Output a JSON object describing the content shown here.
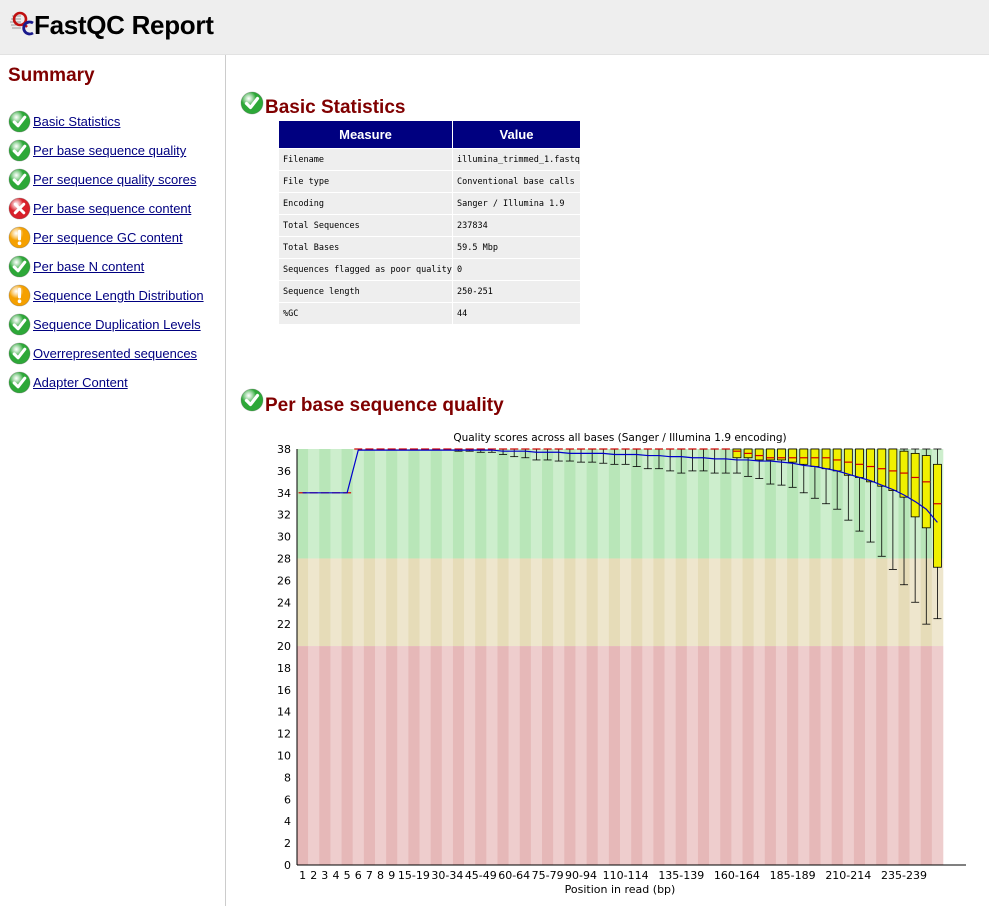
{
  "colors": {
    "ok": "#2da838",
    "warn": "#f5a000",
    "fail": "#d8202a",
    "link": "#000080",
    "heading": "#800000",
    "table_header": "#000080"
  },
  "header": {
    "title": "FastQC Report",
    "logo_icon": "fastqc-logo-icon"
  },
  "sidebar": {
    "title": "Summary",
    "modules": [
      {
        "label": "Basic Statistics",
        "status": "pass"
      },
      {
        "label": "Per base sequence quality",
        "status": "pass"
      },
      {
        "label": "Per sequence quality scores",
        "status": "pass"
      },
      {
        "label": "Per base sequence content",
        "status": "fail"
      },
      {
        "label": "Per sequence GC content",
        "status": "warn"
      },
      {
        "label": "Per base N content",
        "status": "pass"
      },
      {
        "label": "Sequence Length Distribution",
        "status": "warn"
      },
      {
        "label": "Sequence Duplication Levels",
        "status": "pass"
      },
      {
        "label": "Overrepresented sequences",
        "status": "pass"
      },
      {
        "label": "Adapter Content",
        "status": "pass"
      }
    ]
  },
  "basic_stats": {
    "title": "Basic Statistics",
    "status": "pass",
    "headers": [
      "Measure",
      "Value"
    ],
    "rows": [
      [
        "Filename",
        "illumina_trimmed_1.fastq"
      ],
      [
        "File type",
        "Conventional base calls"
      ],
      [
        "Encoding",
        "Sanger / Illumina 1.9"
      ],
      [
        "Total Sequences",
        "237834"
      ],
      [
        "Total Bases",
        "59.5 Mbp"
      ],
      [
        "Sequences flagged as poor quality",
        "0"
      ],
      [
        "Sequence length",
        "250-251"
      ],
      [
        "%GC",
        "44"
      ]
    ]
  },
  "quality_section": {
    "title": "Per base sequence quality",
    "status": "pass"
  },
  "chart_data": {
    "type": "box",
    "title": "Quality scores across all bases (Sanger / Illumina 1.9 encoding)",
    "xlabel": "Position in read (bp)",
    "ylabel": "",
    "ylim": [
      0,
      38
    ],
    "yticks": [
      0,
      2,
      4,
      6,
      8,
      10,
      12,
      14,
      16,
      18,
      20,
      22,
      24,
      26,
      28,
      30,
      32,
      34,
      36,
      38
    ],
    "x_tick_labels": [
      "1",
      "2",
      "3",
      "4",
      "5",
      "6",
      "7",
      "8",
      "9",
      "15-19",
      "30-34",
      "45-49",
      "60-64",
      "75-79",
      "90-94",
      "110-114",
      "135-139",
      "160-164",
      "185-189",
      "210-214",
      "235-239"
    ],
    "bands": [
      {
        "from": 28,
        "to": 38,
        "color": "#b8e6b8",
        "alt_color": "#cdeecd",
        "label": "good"
      },
      {
        "from": 20,
        "to": 28,
        "color": "#e6dcb8",
        "alt_color": "#eee6cd",
        "label": "reasonable"
      },
      {
        "from": 0,
        "to": 20,
        "color": "#e6b8b8",
        "alt_color": "#eecdcd",
        "label": "poor"
      }
    ],
    "categories": [
      "1",
      "2",
      "3",
      "4",
      "5",
      "6",
      "7",
      "8",
      "9",
      "10-14",
      "15-19",
      "20-24",
      "25-29",
      "30-34",
      "35-39",
      "40-44",
      "45-49",
      "50-54",
      "55-59",
      "60-64",
      "65-69",
      "70-74",
      "75-79",
      "80-84",
      "85-89",
      "90-94",
      "95-99",
      "100-104",
      "105-109",
      "110-114",
      "115-119",
      "120-124",
      "125-129",
      "130-134",
      "135-139",
      "140-144",
      "145-149",
      "150-154",
      "155-159",
      "160-164",
      "165-169",
      "170-174",
      "175-179",
      "180-184",
      "185-189",
      "190-194",
      "195-199",
      "200-204",
      "205-209",
      "210-214",
      "215-219",
      "220-224",
      "225-229",
      "230-234",
      "235-239",
      "240-244",
      "245-249",
      "250-251"
    ],
    "mean": [
      34.0,
      34.0,
      34.0,
      34.0,
      34.0,
      37.9,
      37.9,
      37.9,
      37.9,
      37.9,
      37.9,
      37.9,
      37.9,
      37.9,
      37.9,
      37.9,
      37.9,
      37.9,
      37.8,
      37.8,
      37.8,
      37.7,
      37.7,
      37.7,
      37.6,
      37.6,
      37.6,
      37.6,
      37.5,
      37.5,
      37.5,
      37.4,
      37.4,
      37.3,
      37.3,
      37.2,
      37.2,
      37.1,
      37.1,
      37.0,
      37.0,
      36.9,
      36.9,
      36.8,
      36.7,
      36.5,
      36.4,
      36.2,
      36.0,
      35.7,
      35.4,
      35.1,
      34.7,
      34.3,
      33.8,
      33.2,
      32.5,
      31.3
    ],
    "median": [
      34,
      34,
      34,
      34,
      34,
      38,
      38,
      38,
      38,
      38,
      38,
      38,
      38,
      38,
      38,
      38,
      38,
      38,
      38,
      38,
      38,
      38,
      38,
      38,
      38,
      38,
      38,
      38,
      38,
      38,
      38,
      38,
      38,
      38,
      38,
      38,
      38,
      38,
      38,
      37.8,
      37.6,
      37.4,
      37.2,
      37.2,
      37.2,
      37.2,
      37.2,
      37.2,
      37.0,
      36.8,
      36.6,
      36.4,
      36.2,
      36.0,
      35.8,
      35.4,
      35.0,
      33.0
    ],
    "q1": [
      34,
      34,
      34,
      34,
      34,
      38,
      38,
      38,
      38,
      38,
      38,
      38,
      38,
      38,
      38,
      38,
      38,
      38,
      38,
      38,
      38,
      38,
      38,
      38,
      38,
      38,
      38,
      38,
      38,
      38,
      38,
      38,
      38,
      38,
      38,
      38,
      38,
      38,
      38,
      37.2,
      37.2,
      37.0,
      37.0,
      37.0,
      36.8,
      36.6,
      36.4,
      36.2,
      36.0,
      35.6,
      35.4,
      35.0,
      34.6,
      34.2,
      33.6,
      31.8,
      30.8,
      27.2
    ],
    "q3": [
      34,
      34,
      34,
      34,
      34,
      38,
      38,
      38,
      38,
      38,
      38,
      38,
      38,
      38,
      38,
      38,
      38,
      38,
      38,
      38,
      38,
      38,
      38,
      38,
      38,
      38,
      38,
      38,
      38,
      38,
      38,
      38,
      38,
      38,
      38,
      38,
      38,
      38,
      38,
      38,
      38,
      38,
      38,
      38,
      38,
      38,
      38,
      38,
      38,
      38,
      38,
      38,
      38,
      38,
      37.8,
      37.6,
      37.4,
      36.6
    ],
    "p10": [
      34,
      34,
      34,
      34,
      34,
      38,
      38,
      38,
      38,
      38,
      38,
      38,
      38,
      38,
      37.8,
      37.8,
      37.7,
      37.7,
      37.5,
      37.3,
      37.2,
      37.0,
      37.0,
      36.9,
      36.9,
      36.8,
      36.8,
      36.7,
      36.6,
      36.6,
      36.4,
      36.2,
      36.2,
      36.0,
      35.8,
      36.0,
      36.0,
      35.8,
      35.8,
      35.8,
      35.5,
      35.3,
      34.8,
      34.7,
      34.5,
      34.0,
      33.5,
      33.0,
      32.5,
      31.5,
      30.5,
      29.5,
      28.2,
      27.0,
      25.6,
      24.0,
      22.0,
      22.5
    ],
    "p90": [
      34,
      34,
      34,
      34,
      34,
      38,
      38,
      38,
      38,
      38,
      38,
      38,
      38,
      38,
      38,
      38,
      38,
      38,
      38,
      38,
      38,
      38,
      38,
      38,
      38,
      38,
      38,
      38,
      38,
      38,
      38,
      38,
      38,
      38,
      38,
      38,
      38,
      38,
      38,
      38,
      38,
      38,
      38,
      38,
      38,
      38,
      38,
      38,
      38,
      38,
      38,
      38,
      38,
      38,
      38,
      38,
      38,
      38
    ]
  }
}
